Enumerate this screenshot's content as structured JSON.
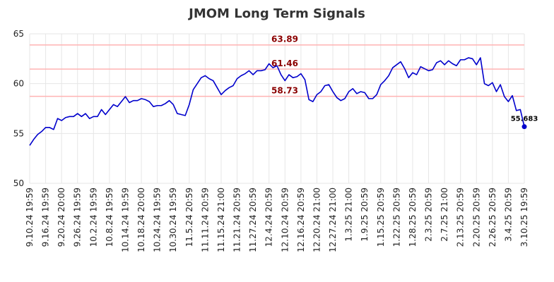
{
  "chart_data": {
    "type": "line",
    "title": "JMOM Long Term Signals",
    "xlabel": "",
    "ylabel": "",
    "ylim": [
      50,
      65
    ],
    "yticks": [
      50,
      55,
      60,
      65
    ],
    "grid": true,
    "colors": {
      "line": "#0000cc",
      "level_line": "#ffb3b3",
      "level_text": "#8b0000",
      "grid": "#e6e6e6"
    },
    "x_tick_labels": [
      "9.10.24 19:59",
      "9.16.24 19:59",
      "9.20.24 20:00",
      "9.26.24 19:59",
      "10.2.24 19:59",
      "10.8.24 19:59",
      "10.14.24 19:59",
      "10.18.24 20:00",
      "10.24.24 19:59",
      "10.30.24 19:59",
      "11.5.24 20:59",
      "11.11.24 20:59",
      "11.15.24 21:00",
      "11.21.24 20:59",
      "11.27.24 20:59",
      "12.4.24 20:59",
      "12.10.24 20:59",
      "12.16.24 20:59",
      "12.20.24 21:00",
      "12.27.24 21:00",
      "1.3.25 21:00",
      "1.9.25 20:59",
      "1.15.25 20:59",
      "1.22.25 20:59",
      "1.28.25 20:59",
      "2.3.25 20:59",
      "2.7.25 21:00",
      "2.13.25 20:59",
      "2.20.25 20:59",
      "2.26.25 20:59",
      "3.4.25 20:59",
      "3.10.25 19:59"
    ],
    "levels": [
      {
        "value": 63.89,
        "label": "63.89"
      },
      {
        "value": 61.46,
        "label": "61.46"
      },
      {
        "value": 58.73,
        "label": "58.73"
      }
    ],
    "last_value_label": "55.683",
    "series": [
      {
        "values": [
          53.8,
          54.4,
          54.9,
          55.2,
          55.6,
          55.6,
          55.4,
          56.5,
          56.3,
          56.6,
          56.7,
          56.7,
          57.0,
          56.7,
          57.0,
          56.5,
          56.7,
          56.7,
          57.4,
          56.9,
          57.4,
          57.9,
          57.7,
          58.2,
          58.7,
          58.1,
          58.3,
          58.3,
          58.5,
          58.4,
          58.2,
          57.7,
          57.8,
          57.8,
          58.0,
          58.3,
          57.9,
          57.0,
          56.9,
          56.8,
          57.9,
          59.4,
          60.0,
          60.6,
          60.8,
          60.5,
          60.3,
          59.6,
          58.9,
          59.3,
          59.6,
          59.8,
          60.5,
          60.8,
          61.0,
          61.3,
          60.9,
          61.3,
          61.3,
          61.4,
          62.0,
          61.6,
          61.8,
          60.9,
          60.3,
          60.9,
          60.6,
          60.7,
          61.0,
          60.4,
          58.4,
          58.2,
          58.9,
          59.2,
          59.8,
          59.9,
          59.2,
          58.6,
          58.3,
          58.5,
          59.2,
          59.5,
          59.0,
          59.2,
          59.1,
          58.5,
          58.5,
          58.9,
          59.9,
          60.3,
          60.8,
          61.6,
          61.9,
          62.2,
          61.5,
          60.6,
          61.1,
          60.9,
          61.7,
          61.5,
          61.3,
          61.4,
          62.1,
          62.3,
          61.9,
          62.3,
          62.0,
          61.8,
          62.4,
          62.4,
          62.6,
          62.5,
          61.9,
          62.6,
          60.0,
          59.8,
          60.1,
          59.2,
          59.9,
          58.7,
          58.2,
          58.8,
          57.3,
          57.4,
          55.683
        ]
      }
    ]
  }
}
